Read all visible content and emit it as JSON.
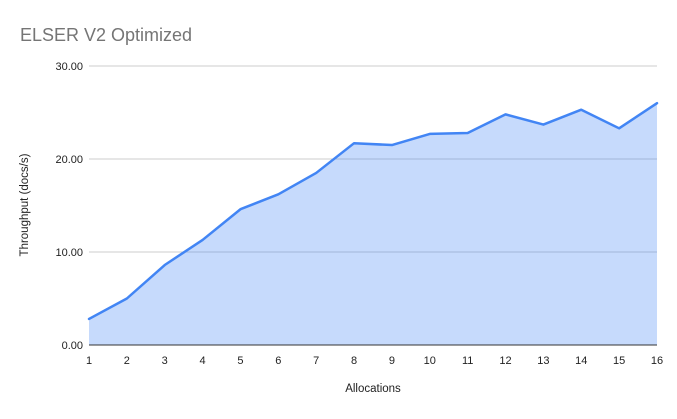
{
  "chart_data": {
    "type": "area",
    "title": "ELSER V2 Optimized",
    "xlabel": "Allocations",
    "ylabel": "Throughput (docs/s)",
    "x": [
      1,
      2,
      3,
      4,
      5,
      6,
      7,
      8,
      9,
      10,
      11,
      12,
      13,
      14,
      15,
      16
    ],
    "values": [
      2.8,
      5.0,
      8.6,
      11.3,
      14.6,
      16.2,
      18.5,
      21.7,
      21.5,
      22.7,
      22.8,
      24.8,
      23.7,
      25.3,
      23.3,
      26.0
    ],
    "ylim": [
      0,
      30
    ],
    "yticks": [
      0,
      10,
      20,
      30
    ],
    "ytick_labels": [
      "0.00",
      "10.00",
      "20.00",
      "30.00"
    ],
    "xtick_labels": [
      "1",
      "2",
      "3",
      "4",
      "5",
      "6",
      "7",
      "8",
      "9",
      "10",
      "11",
      "12",
      "13",
      "14",
      "15",
      "16"
    ],
    "grid": true,
    "legend": "none",
    "colors": {
      "line": "#4285f4",
      "fill": "rgba(66,133,244,0.3)",
      "gridline": "#cccccc",
      "axis_line": "#333333",
      "title": "#757575",
      "tick_label": "#222222"
    }
  }
}
